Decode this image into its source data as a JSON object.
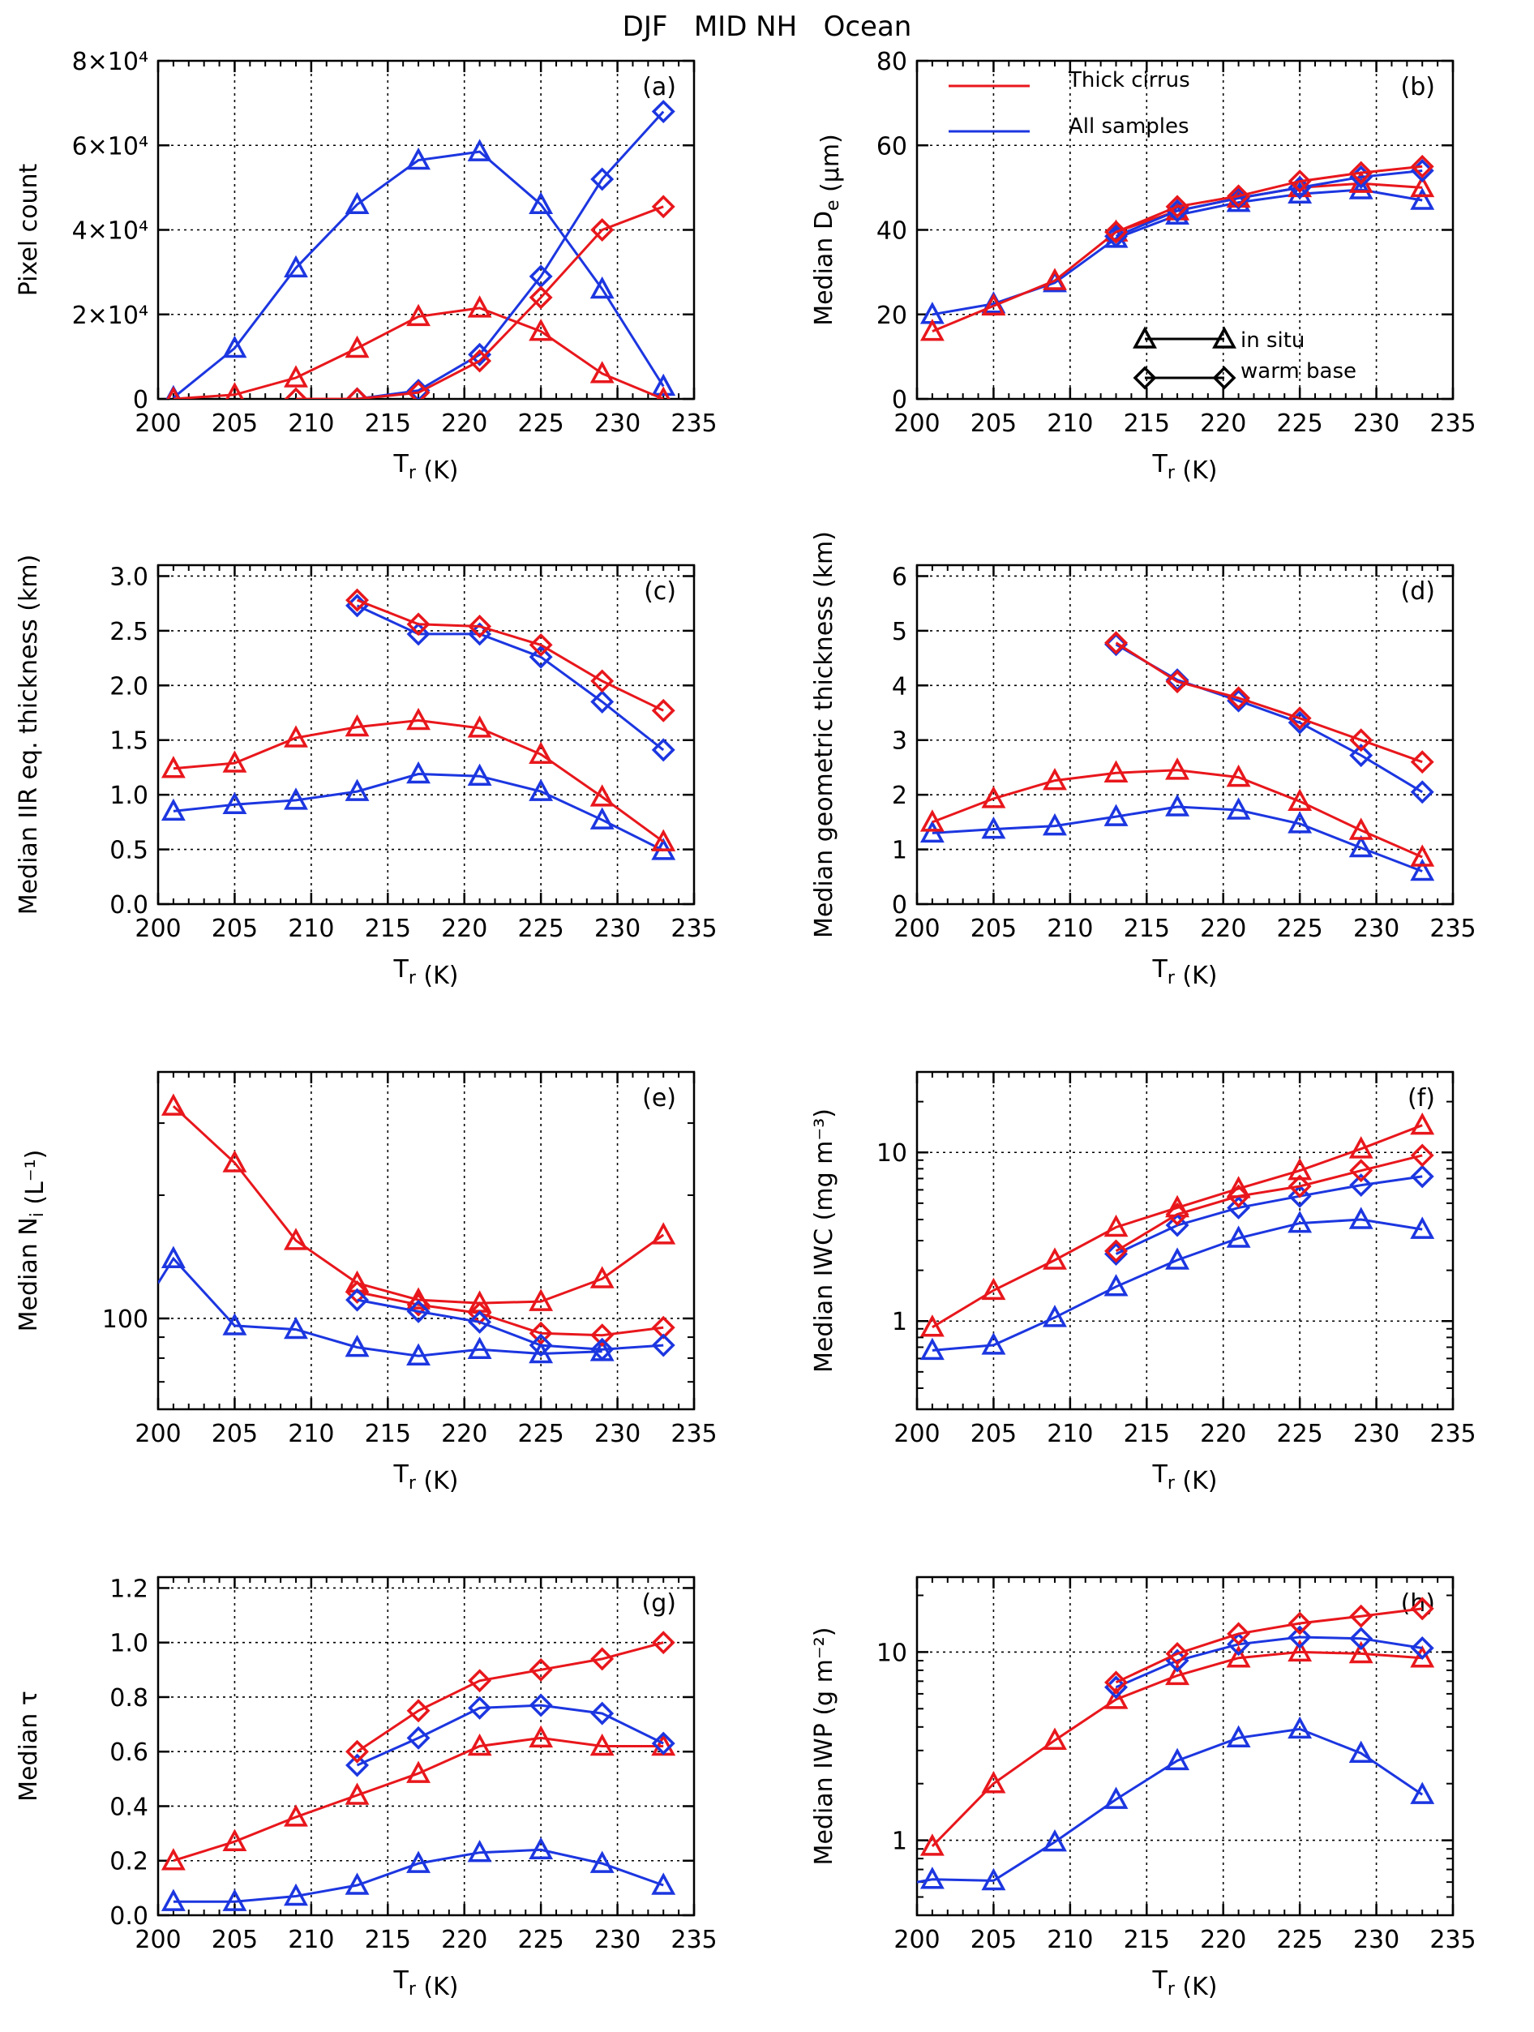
{
  "figure": {
    "title": "DJF   MID NH   Ocean"
  },
  "colors": {
    "thick": "#e8171c",
    "all": "#1c36e0",
    "legend_marker": "#000000"
  },
  "legend": {
    "thick_label": "Thick cirrus",
    "all_label": "All samples",
    "insitu_label": "in situ",
    "warmbase_label": "warm base"
  },
  "chart_data": [
    {
      "panel": "(a)",
      "type": "line",
      "title": "",
      "xlabel": "T_r (K)",
      "ylabel": "Pixel count",
      "xlim": [
        200,
        235
      ],
      "ylim": [
        0,
        80000
      ],
      "log_y": false,
      "grid": true,
      "xticks": [
        200,
        205,
        210,
        215,
        220,
        225,
        230,
        235
      ],
      "yticks": [
        0,
        20000,
        40000,
        60000,
        80000
      ],
      "ytick_labels": [
        "0",
        "2×10⁴",
        "4×10⁴",
        "6×10⁴",
        "8×10⁴"
      ],
      "x": [
        201,
        205,
        209,
        213,
        217,
        221,
        225,
        229,
        233
      ],
      "series": [
        {
          "color": "all",
          "marker": "triangle",
          "values": [
            300,
            12000,
            31000,
            46000,
            56500,
            58500,
            46000,
            26000,
            3000
          ]
        },
        {
          "color": "thick",
          "marker": "triangle",
          "values": [
            0,
            1000,
            5000,
            12000,
            19500,
            21500,
            16000,
            6000,
            0
          ]
        },
        {
          "color": "all",
          "marker": "diamond",
          "values": [
            null,
            null,
            null,
            0,
            2000,
            10500,
            29000,
            52000,
            68000
          ]
        },
        {
          "color": "thick",
          "marker": "diamond",
          "values": [
            null,
            null,
            0,
            0,
            1500,
            9000,
            24000,
            40000,
            45500
          ]
        }
      ]
    },
    {
      "panel": "(b)",
      "type": "line",
      "title": "",
      "xlabel": "T_r (K)",
      "ylabel": "Median D_e (μm)",
      "xlim": [
        200,
        235
      ],
      "ylim": [
        0,
        80
      ],
      "log_y": false,
      "grid": true,
      "legend": "top-left",
      "xticks": [
        200,
        205,
        210,
        215,
        220,
        225,
        230,
        235
      ],
      "yticks": [
        0,
        20,
        40,
        60,
        80
      ],
      "ytick_labels": [
        "0",
        "20",
        "40",
        "60",
        "80"
      ],
      "x": [
        201,
        205,
        209,
        213,
        217,
        221,
        225,
        229,
        233
      ],
      "series": [
        {
          "color": "all",
          "marker": "triangle",
          "values": [
            20,
            22.5,
            27.5,
            38,
            43.5,
            46.5,
            48.5,
            49.5,
            47
          ]
        },
        {
          "color": "thick",
          "marker": "triangle",
          "values": [
            16,
            22,
            28,
            39.5,
            44.5,
            47.5,
            50,
            51,
            50
          ]
        },
        {
          "color": "all",
          "marker": "diamond",
          "values": [
            null,
            null,
            null,
            38.5,
            44.5,
            47.5,
            50,
            52.5,
            54
          ]
        },
        {
          "color": "thick",
          "marker": "diamond",
          "values": [
            null,
            null,
            null,
            39.5,
            45.5,
            48,
            51.5,
            53.5,
            55
          ]
        }
      ]
    },
    {
      "panel": "(c)",
      "type": "line",
      "title": "",
      "xlabel": "T_r (K)",
      "ylabel": "Median IIR eq. thickness (km)",
      "xlim": [
        200,
        235
      ],
      "ylim": [
        0,
        3.1
      ],
      "log_y": false,
      "grid": true,
      "xticks": [
        200,
        205,
        210,
        215,
        220,
        225,
        230,
        235
      ],
      "yticks": [
        0,
        0.5,
        1,
        1.5,
        2,
        2.5,
        3
      ],
      "ytick_labels": [
        "0.0",
        "0.5",
        "1.0",
        "1.5",
        "2.0",
        "2.5",
        "3.0"
      ],
      "x": [
        201,
        205,
        209,
        213,
        217,
        221,
        225,
        229,
        233
      ],
      "series": [
        {
          "color": "all",
          "marker": "triangle",
          "values": [
            0.85,
            0.91,
            0.95,
            1.03,
            1.19,
            1.17,
            1.03,
            0.77,
            0.49
          ]
        },
        {
          "color": "thick",
          "marker": "triangle",
          "values": [
            1.24,
            1.29,
            1.52,
            1.62,
            1.68,
            1.61,
            1.37,
            0.98,
            0.57
          ]
        },
        {
          "color": "all",
          "marker": "diamond",
          "values": [
            null,
            null,
            null,
            2.73,
            2.47,
            2.47,
            2.26,
            1.85,
            1.41
          ]
        },
        {
          "color": "thick",
          "marker": "diamond",
          "values": [
            null,
            null,
            null,
            2.78,
            2.56,
            2.54,
            2.37,
            2.04,
            1.77
          ]
        }
      ]
    },
    {
      "panel": "(d)",
      "type": "line",
      "title": "",
      "xlabel": "T_r (K)",
      "ylabel": "Median geometric thickness (km)",
      "xlim": [
        200,
        235
      ],
      "ylim": [
        0,
        6.2
      ],
      "log_y": false,
      "grid": true,
      "xticks": [
        200,
        205,
        210,
        215,
        220,
        225,
        230,
        235
      ],
      "yticks": [
        0,
        1,
        2,
        3,
        4,
        5,
        6
      ],
      "ytick_labels": [
        "0",
        "1",
        "2",
        "3",
        "4",
        "5",
        "6"
      ],
      "x": [
        201,
        205,
        209,
        213,
        217,
        221,
        225,
        229,
        233
      ],
      "series": [
        {
          "color": "all",
          "marker": "triangle",
          "values": [
            1.3,
            1.37,
            1.43,
            1.6,
            1.78,
            1.72,
            1.47,
            1.03,
            0.6
          ]
        },
        {
          "color": "thick",
          "marker": "triangle",
          "values": [
            1.5,
            1.93,
            2.26,
            2.4,
            2.45,
            2.32,
            1.88,
            1.35,
            0.86
          ]
        },
        {
          "color": "all",
          "marker": "diamond",
          "values": [
            null,
            null,
            null,
            4.75,
            4.1,
            3.72,
            3.32,
            2.72,
            2.05
          ]
        },
        {
          "color": "thick",
          "marker": "diamond",
          "values": [
            null,
            null,
            null,
            4.78,
            4.07,
            3.77,
            3.4,
            3.0,
            2.6
          ]
        }
      ]
    },
    {
      "panel": "(e)",
      "type": "line",
      "title": "",
      "xlabel": "T_r (K)",
      "ylabel": "Median N_i (L⁻¹)",
      "xlim": [
        200,
        235
      ],
      "ylim": [
        60,
        400
      ],
      "log_y": true,
      "grid": true,
      "xticks": [
        200,
        205,
        210,
        215,
        220,
        225,
        230,
        235
      ],
      "yticks": [
        100
      ],
      "ytick_labels": [
        "100"
      ],
      "x": [
        200,
        201,
        205,
        209,
        213,
        217,
        221,
        225,
        229,
        233
      ],
      "series": [
        {
          "color": "thick",
          "marker": "triangle",
          "values": [
            null,
            330,
            240,
            155,
            122,
            111,
            109,
            110,
            125,
            160
          ]
        },
        {
          "color": "all",
          "marker": "triangle",
          "values": [
            122,
            140,
            96,
            94,
            85,
            81,
            84,
            82,
            83,
            null
          ]
        },
        {
          "color": "thick",
          "marker": "diamond",
          "values": [
            null,
            null,
            null,
            null,
            116,
            108,
            103,
            92,
            91,
            95
          ]
        },
        {
          "color": "all",
          "marker": "diamond",
          "values": [
            null,
            null,
            null,
            null,
            111,
            104,
            98,
            86,
            84,
            86
          ]
        }
      ]
    },
    {
      "panel": "(f)",
      "type": "line",
      "title": "",
      "xlabel": "T_r (K)",
      "ylabel": "Median IWC (mg m⁻³)",
      "xlim": [
        200,
        235
      ],
      "ylim": [
        0.3,
        30
      ],
      "log_y": true,
      "grid": true,
      "xticks": [
        200,
        205,
        210,
        215,
        220,
        225,
        230,
        235
      ],
      "yticks": [
        1,
        10
      ],
      "ytick_labels": [
        "1",
        "10"
      ],
      "x": [
        201,
        205,
        209,
        213,
        217,
        221,
        225,
        229,
        233
      ],
      "series": [
        {
          "color": "all",
          "marker": "triangle",
          "values": [
            0.67,
            0.72,
            1.05,
            1.6,
            2.3,
            3.1,
            3.8,
            4.0,
            3.5
          ]
        },
        {
          "color": "thick",
          "marker": "triangle",
          "values": [
            0.92,
            1.52,
            2.3,
            3.6,
            4.7,
            6.1,
            7.8,
            10.5,
            14.5
          ]
        },
        {
          "color": "all",
          "marker": "diamond",
          "values": [
            null,
            null,
            null,
            2.5,
            3.7,
            4.7,
            5.5,
            6.4,
            7.2
          ]
        },
        {
          "color": "thick",
          "marker": "diamond",
          "values": [
            null,
            null,
            null,
            2.6,
            4.3,
            5.5,
            6.3,
            7.8,
            9.6
          ]
        }
      ]
    },
    {
      "panel": "(g)",
      "type": "line",
      "title": "",
      "xlabel": "T_r (K)",
      "ylabel": "Median τ",
      "xlim": [
        200,
        235
      ],
      "ylim": [
        0,
        1.24
      ],
      "log_y": false,
      "grid": true,
      "xticks": [
        200,
        205,
        210,
        215,
        220,
        225,
        230,
        235
      ],
      "yticks": [
        0,
        0.2,
        0.4,
        0.6,
        0.8,
        1.0,
        1.2
      ],
      "ytick_labels": [
        "0.0",
        "0.2",
        "0.4",
        "0.6",
        "0.8",
        "1.0",
        "1.2"
      ],
      "x": [
        201,
        205,
        209,
        213,
        217,
        221,
        225,
        229,
        233
      ],
      "series": [
        {
          "color": "all",
          "marker": "triangle",
          "values": [
            0.05,
            0.05,
            0.07,
            0.11,
            0.19,
            0.23,
            0.24,
            0.19,
            0.11
          ]
        },
        {
          "color": "thick",
          "marker": "triangle",
          "values": [
            0.2,
            0.27,
            0.36,
            0.44,
            0.52,
            0.62,
            0.65,
            0.62,
            0.62
          ]
        },
        {
          "color": "all",
          "marker": "diamond",
          "values": [
            null,
            null,
            null,
            0.55,
            0.65,
            0.76,
            0.77,
            0.74,
            0.63
          ]
        },
        {
          "color": "thick",
          "marker": "diamond",
          "values": [
            null,
            null,
            null,
            0.6,
            0.75,
            0.86,
            0.9,
            0.94,
            1.0
          ]
        }
      ]
    },
    {
      "panel": "(h)",
      "type": "line",
      "title": "",
      "xlabel": "T_r (K)",
      "ylabel": "Median IWP (g m⁻²)",
      "xlim": [
        200,
        235
      ],
      "ylim": [
        0.4,
        25
      ],
      "log_y": true,
      "grid": true,
      "xticks": [
        200,
        205,
        210,
        215,
        220,
        225,
        230,
        235
      ],
      "yticks": [
        1,
        10
      ],
      "ytick_labels": [
        "1",
        "10"
      ],
      "x": [
        200,
        201,
        205,
        209,
        213,
        217,
        221,
        225,
        229,
        233
      ],
      "series": [
        {
          "color": "all",
          "marker": "triangle",
          "values": [
            0.6,
            0.62,
            0.61,
            0.98,
            1.65,
            2.65,
            3.5,
            3.9,
            2.9,
            1.75
          ]
        },
        {
          "color": "thick",
          "marker": "triangle",
          "values": [
            null,
            0.93,
            2.0,
            3.4,
            5.6,
            7.5,
            9.3,
            10.0,
            9.8,
            9.3
          ]
        },
        {
          "color": "all",
          "marker": "diamond",
          "values": [
            null,
            null,
            null,
            null,
            6.5,
            9.0,
            11.0,
            12.0,
            11.8,
            10.5
          ]
        },
        {
          "color": "thick",
          "marker": "diamond",
          "values": [
            null,
            null,
            null,
            null,
            6.9,
            9.8,
            12.5,
            14.2,
            15.5,
            17.0
          ]
        }
      ]
    }
  ]
}
